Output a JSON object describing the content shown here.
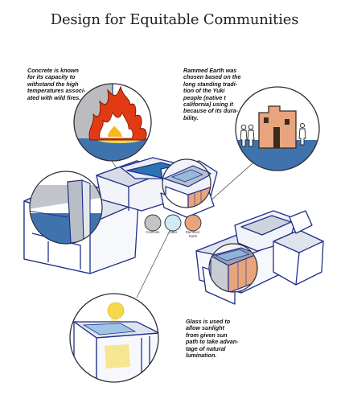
{
  "title": "Design for Equitable Communities",
  "notes": {
    "concrete": "Concrete is known\nfor its capacity to\nwithstand the high\ntemperatures associ-\nated with wild fires.",
    "rammed_earth": "Rammed Earth was\nchosen based on the\nlong standing tradi-\ntion of the Yuki\npeople (native t\ncalifornia) using it\nbecause of its dura-\nbility.",
    "glass": "Glass is used to\nallow sunlight\nfrom given sun\npath to take advan-\ntage of natural\nlumination."
  },
  "legend": [
    {
      "label": "Concrete",
      "color": "#c4c4c6"
    },
    {
      "label": "Glass",
      "color": "#cfeaf2"
    },
    {
      "label": "Rammed\nEarth",
      "color": "#e8a47c"
    }
  ],
  "colors": {
    "water": "#3f73ae",
    "outline": "#1f2f8a",
    "roof": "#cdd2dc",
    "flame": "#e23a12",
    "sun": "#f5d94b",
    "earth": "#e8a47c",
    "concrete": "#bcbcbe"
  }
}
